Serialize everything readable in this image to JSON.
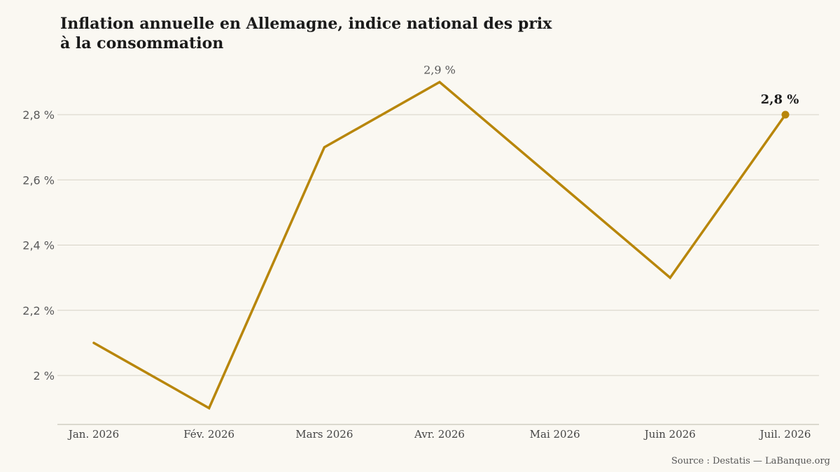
{
  "title_line1": "Inflation annuelle en Allemagne, indice national des prix",
  "title_line2": "à la consommation",
  "source": "Source : Destatis — LaBanque.org",
  "colors": {
    "line": "#b8860b",
    "grid": "#d6d2c6",
    "background": "#faf8f2"
  },
  "chart_data": {
    "type": "line",
    "categories": [
      "Jan. 2026",
      "Fév. 2026",
      "Mars 2026",
      "Avr. 2026",
      "Mai 2026",
      "Juin 2026",
      "Juil. 2026"
    ],
    "series": [
      {
        "values": [
          2.1,
          1.9,
          2.7,
          2.9,
          2.6,
          2.3,
          2.8
        ]
      }
    ],
    "yticks": [
      2.0,
      2.2,
      2.4,
      2.6,
      2.8
    ],
    "ytick_labels": [
      "2 %",
      "2,2 %",
      "2,4 %",
      "2,6 %",
      "2,8 %"
    ],
    "ylim": [
      1.85,
      3.0
    ],
    "grid": true,
    "annotations": [
      {
        "index": 3,
        "text": "2,9 %",
        "style": "peak"
      },
      {
        "index": 6,
        "text": "2,8 %",
        "style": "last"
      }
    ]
  }
}
